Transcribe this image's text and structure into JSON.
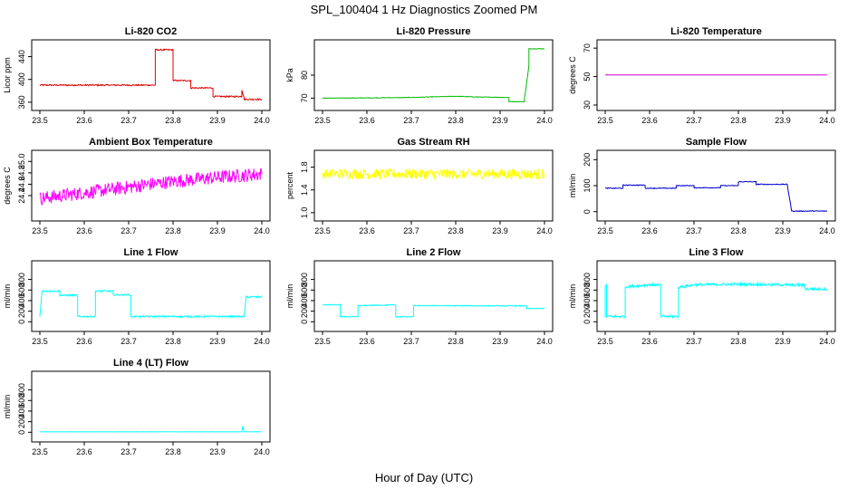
{
  "figure": {
    "title": "SPL_100404  1 Hz Diagnostics Zoomed PM",
    "xlabel": "Hour of Day (UTC)"
  },
  "chart_data": [
    {
      "type": "line",
      "title": "Li-820 CO2",
      "ylabel": "Licor ppm",
      "color": "#dd0000",
      "xlim": [
        23.5,
        24.0
      ],
      "ylim": [
        355,
        460
      ],
      "xticks": [
        "23.5",
        "23.6",
        "23.7",
        "23.8",
        "23.9",
        "24.0"
      ],
      "yticks": [
        "360",
        "400",
        "440"
      ],
      "x": [
        23.5,
        23.76,
        23.76,
        23.8,
        23.8,
        23.84,
        23.84,
        23.89,
        23.89,
        23.955,
        23.955,
        23.96,
        23.96,
        24.0
      ],
      "y": [
        390,
        390,
        452,
        452,
        398,
        398,
        385,
        385,
        370,
        370,
        382,
        368,
        365,
        365
      ],
      "noise": 1.2
    },
    {
      "type": "line",
      "title": "Li-820 Pressure",
      "ylabel": "kPa",
      "color": "#00bb00",
      "xlim": [
        23.5,
        24.0
      ],
      "ylim": [
        67,
        93
      ],
      "xticks": [
        "23.5",
        "23.6",
        "23.7",
        "23.8",
        "23.9",
        "24.0"
      ],
      "yticks": [
        "70",
        "80"
      ],
      "x": [
        23.5,
        23.6,
        23.7,
        23.76,
        23.8,
        23.85,
        23.92,
        23.92,
        23.955,
        23.955,
        23.965,
        23.965,
        24.0
      ],
      "y": [
        70.0,
        70.1,
        70.3,
        70.6,
        70.8,
        70.5,
        70.3,
        68.5,
        68.5,
        70.0,
        84.0,
        91.5,
        91.5
      ],
      "noise": 0.12
    },
    {
      "type": "line",
      "title": "Li-820 Temperature",
      "ylabel": "degrees C",
      "color": "#cc00cc",
      "xlim": [
        23.5,
        24.0
      ],
      "ylim": [
        30,
        72
      ],
      "xticks": [
        "23.5",
        "23.6",
        "23.7",
        "23.8",
        "23.9",
        "24.0"
      ],
      "yticks": [
        "30",
        "50",
        "70"
      ],
      "x": [
        23.5,
        24.0
      ],
      "y": [
        51.2,
        51.2
      ],
      "noise": 0
    },
    {
      "type": "line",
      "title": "Ambient Box Temperature",
      "ylabel": "degrees C",
      "color": "#ff00ff",
      "xlim": [
        23.5,
        24.0
      ],
      "ylim": [
        24.05,
        25.1
      ],
      "xticks": [
        "23.5",
        "23.6",
        "23.7",
        "23.8",
        "23.9",
        "24.0"
      ],
      "yticks": [
        "24.4",
        "24.6",
        "24.8",
        "25.0"
      ],
      "x": [
        23.5,
        23.6,
        23.7,
        23.8,
        23.9,
        24.0
      ],
      "y": [
        24.35,
        24.45,
        24.55,
        24.65,
        24.72,
        24.78
      ],
      "noise": 0.12
    },
    {
      "type": "line",
      "title": "Gas Stream RH",
      "ylabel": "percent",
      "color": "#ffff00",
      "xlim": [
        23.5,
        24.0
      ],
      "ylim": [
        0.95,
        2.0
      ],
      "xticks": [
        "23.5",
        "23.6",
        "23.7",
        "23.8",
        "23.9",
        "24.0"
      ],
      "yticks": [
        "1.0",
        "1.4",
        "1.8"
      ],
      "x": [
        23.5,
        24.0
      ],
      "y": [
        1.68,
        1.68
      ],
      "noise": 0.09
    },
    {
      "type": "line",
      "title": "Sample Flow",
      "ylabel": "ml/min",
      "color": "#0000cc",
      "xlim": [
        23.5,
        24.0
      ],
      "ylim": [
        -15,
        215
      ],
      "xticks": [
        "23.5",
        "23.6",
        "23.7",
        "23.8",
        "23.9",
        "24.0"
      ],
      "yticks": [
        "0",
        "100",
        "200"
      ],
      "x": [
        23.5,
        23.54,
        23.54,
        23.59,
        23.59,
        23.66,
        23.66,
        23.7,
        23.7,
        23.76,
        23.76,
        23.8,
        23.8,
        23.84,
        23.84,
        23.91,
        23.92,
        24.0
      ],
      "y": [
        90,
        90,
        102,
        102,
        90,
        90,
        100,
        100,
        92,
        92,
        100,
        100,
        115,
        115,
        105,
        105,
        2,
        2
      ],
      "noise": 1.5
    },
    {
      "type": "line",
      "title": "Line 1 Flow",
      "ylabel": "ml/min",
      "color": "#00ffff",
      "xlim": [
        23.5,
        24.0
      ],
      "ylim": [
        -80,
        1050
      ],
      "xticks": [
        "23.5",
        "23.6",
        "23.7",
        "23.8",
        "23.9",
        "24.0"
      ],
      "yticks": [
        "0",
        "200",
        "400",
        "600",
        "800"
      ],
      "x": [
        23.5,
        23.505,
        23.545,
        23.545,
        23.585,
        23.585,
        23.625,
        23.625,
        23.665,
        23.665,
        23.705,
        23.705,
        23.96,
        23.965,
        24.0
      ],
      "y": [
        100,
        580,
        580,
        500,
        500,
        100,
        100,
        580,
        580,
        510,
        510,
        100,
        100,
        470,
        470
      ],
      "noise": 15
    },
    {
      "type": "line",
      "title": "Line 2 Flow",
      "ylabel": "ml/min",
      "color": "#00ffff",
      "xlim": [
        23.5,
        24.0
      ],
      "ylim": [
        -80,
        1050
      ],
      "xticks": [
        "23.5",
        "23.6",
        "23.7",
        "23.8",
        "23.9",
        "24.0"
      ],
      "yticks": [
        "0",
        "200",
        "400",
        "600",
        "800"
      ],
      "x": [
        23.5,
        23.54,
        23.54,
        23.58,
        23.58,
        23.665,
        23.665,
        23.705,
        23.705,
        23.96,
        23.96,
        24.0
      ],
      "y": [
        320,
        320,
        95,
        95,
        305,
        320,
        95,
        95,
        305,
        300,
        250,
        250
      ],
      "noise": 8
    },
    {
      "type": "line",
      "title": "Line 3 Flow",
      "ylabel": "ml/min",
      "color": "#00ffff",
      "xlim": [
        23.5,
        24.0
      ],
      "ylim": [
        -80,
        1050
      ],
      "xticks": [
        "23.5",
        "23.6",
        "23.7",
        "23.8",
        "23.9",
        "24.0"
      ],
      "yticks": [
        "0",
        "200",
        "400",
        "600",
        "800"
      ],
      "x": [
        23.5,
        23.5,
        23.503,
        23.503,
        23.545,
        23.545,
        23.6,
        23.625,
        23.625,
        23.665,
        23.665,
        23.7,
        23.8,
        23.9,
        23.95,
        23.95,
        24.0
      ],
      "y": [
        100,
        680,
        680,
        100,
        100,
        660,
        700,
        700,
        100,
        100,
        650,
        700,
        710,
        700,
        690,
        620,
        620
      ],
      "noise": 25
    },
    {
      "type": "line",
      "title": "Line 4 (LT) Flow",
      "ylabel": "ml/min",
      "color": "#00ffff",
      "xlim": [
        23.5,
        24.0
      ],
      "ylim": [
        -80,
        1050
      ],
      "xticks": [
        "23.5",
        "23.6",
        "23.7",
        "23.8",
        "23.9",
        "24.0"
      ],
      "yticks": [
        "0",
        "200",
        "400",
        "600",
        "800"
      ],
      "x": [
        23.5,
        23.955,
        23.957,
        23.96,
        24.0
      ],
      "y": [
        8,
        8,
        120,
        8,
        8
      ],
      "noise": 2
    }
  ]
}
